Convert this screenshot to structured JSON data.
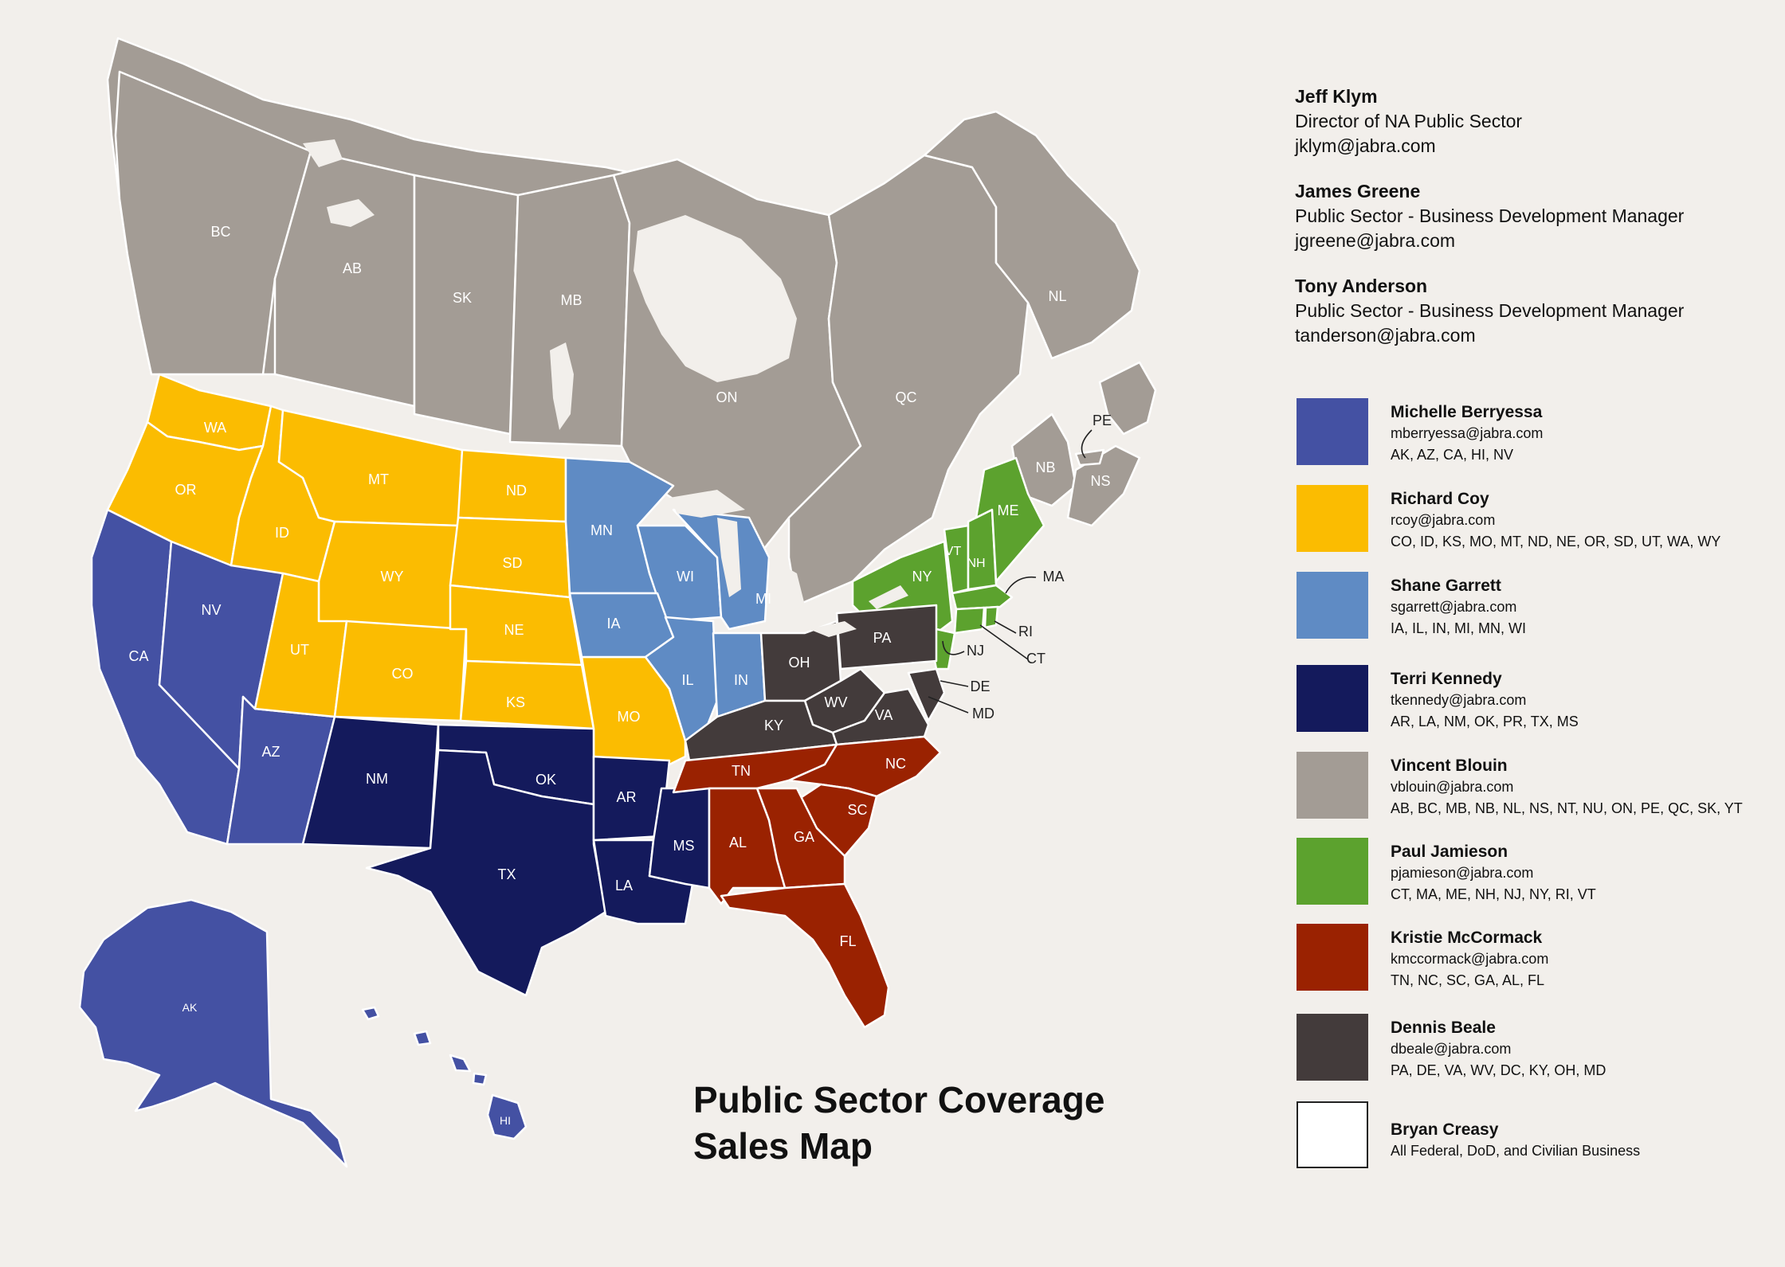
{
  "title": "Public Sector Coverage\nSales Map",
  "contacts": [
    {
      "name": "Jeff Klym",
      "role": "Director of NA Public Sector",
      "email": "jklym@jabra.com"
    },
    {
      "name": "James Greene",
      "role": "Public Sector - Business Development Manager",
      "email": "jgreene@jabra.com"
    },
    {
      "name": "Tony Anderson",
      "role": "Public Sector - Business Development Manager",
      "email": "tanderson@jabra.com"
    }
  ],
  "legend": [
    {
      "name": "Michelle Berryessa",
      "email": "mberryessa@jabra.com",
      "states": "AK, AZ, CA, HI, NV",
      "color": "#4451a3"
    },
    {
      "name": "Richard Coy",
      "email": "rcoy@jabra.com",
      "states": "CO, ID, KS, MO, MT, ND, NE, OR, SD, UT, WA, WY",
      "color": "#fbbc01"
    },
    {
      "name": "Shane Garrett",
      "email": "sgarrett@jabra.com",
      "states": "IA, IL, IN, MI, MN, WI",
      "color": "#5f8bc4"
    },
    {
      "name": "Terri Kennedy",
      "email": "tkennedy@jabra.com",
      "states": "AR, LA, NM, OK, PR, TX, MS",
      "color": "#141a5c"
    },
    {
      "name": "Vincent Blouin",
      "email": "vblouin@jabra.com",
      "states": "AB, BC, MB, NB, NL, NS, NT, NU, ON, PE, QC, SK, YT",
      "color": "#a39c95"
    },
    {
      "name": "Paul Jamieson",
      "email": "pjamieson@jabra.com",
      "states": "CT, MA, ME, NH, NJ, NY, RI, VT",
      "color": "#5ca22e"
    },
    {
      "name": "Kristie McCormack",
      "email": "kmccormack@jabra.com",
      "states": "TN, NC, SC, GA, AL, FL",
      "color": "#9a2201"
    },
    {
      "name": "Dennis Beale",
      "email": "dbeale@jabra.com",
      "states": "PA, DE, VA, WV, DC, KY, OH, MD",
      "color": "#433b3b"
    },
    {
      "name": "Bryan Creasy",
      "email": "",
      "states": "All Federal, DoD, and Civilian Business",
      "color": "#ffffff"
    }
  ],
  "regions": {
    "canada": {
      "color": "#a39c95",
      "labels": [
        "BC",
        "AB",
        "SK",
        "MB",
        "ON",
        "QC",
        "NL",
        "NB",
        "NS",
        "PE"
      ]
    },
    "berryessa": {
      "color": "#4451a3",
      "labels": [
        "CA",
        "NV",
        "AZ",
        "AK",
        "HI"
      ]
    },
    "coy": {
      "color": "#fbbc01",
      "labels": [
        "WA",
        "OR",
        "ID",
        "MT",
        "WY",
        "UT",
        "CO",
        "ND",
        "SD",
        "NE",
        "KS",
        "MO"
      ]
    },
    "garrett": {
      "color": "#5f8bc4",
      "labels": [
        "MN",
        "WI",
        "MI",
        "IA",
        "IL",
        "IN"
      ]
    },
    "kennedy": {
      "color": "#141a5c",
      "labels": [
        "NM",
        "OK",
        "TX",
        "AR",
        "LA",
        "MS"
      ]
    },
    "jamieson": {
      "color": "#5ca22e",
      "labels": [
        "ME",
        "VT",
        "NH",
        "NY",
        "MA",
        "RI",
        "CT",
        "NJ"
      ]
    },
    "mccormack": {
      "color": "#9a2201",
      "labels": [
        "TN",
        "NC",
        "SC",
        "GA",
        "AL",
        "FL"
      ]
    },
    "beale": {
      "color": "#433b3b",
      "labels": [
        "OH",
        "PA",
        "WV",
        "VA",
        "KY",
        "DE",
        "MD"
      ]
    }
  }
}
